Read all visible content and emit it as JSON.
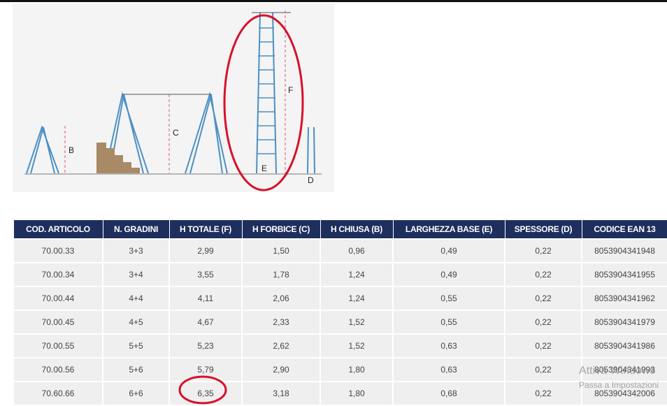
{
  "diagram": {
    "labels": [
      "B",
      "C",
      "F",
      "E",
      "D"
    ]
  },
  "table": {
    "headers": [
      "COD. ARTICOLO",
      "N. GRADINI",
      "H TOTALE (F)",
      "H FORBICE (C)",
      "H CHIUSA (B)",
      "LARGHEZZA BASE (E)",
      "SPESSORE (D)",
      "CODICE EAN 13"
    ],
    "rows": [
      [
        "70.00.33",
        "3+3",
        "2,99",
        "1,50",
        "0,96",
        "0,49",
        "0,22",
        "8053904341948"
      ],
      [
        "70.00.34",
        "3+4",
        "3,55",
        "1,78",
        "1,24",
        "0,49",
        "0,22",
        "8053904341955"
      ],
      [
        "70.00.44",
        "4+4",
        "4,11",
        "2,06",
        "1,24",
        "0,55",
        "0,22",
        "8053904341962"
      ],
      [
        "70.00.45",
        "4+5",
        "4,67",
        "2,33",
        "1,52",
        "0,55",
        "0,22",
        "8053904341979"
      ],
      [
        "70.00.55",
        "5+5",
        "5,23",
        "2,62",
        "1,52",
        "0,63",
        "0,22",
        "8053904341986"
      ],
      [
        "70.00.56",
        "5+6",
        "5,79",
        "2,90",
        "1,80",
        "0,63",
        "0,22",
        "8053904341993"
      ],
      [
        "70.60.66",
        "6+6",
        "6,35",
        "3,18",
        "1,80",
        "0,68",
        "0,22",
        "8053904342006"
      ]
    ]
  },
  "watermark": {
    "title": "Attiva Windows",
    "subtitle": "Passa a Impostazioni"
  }
}
